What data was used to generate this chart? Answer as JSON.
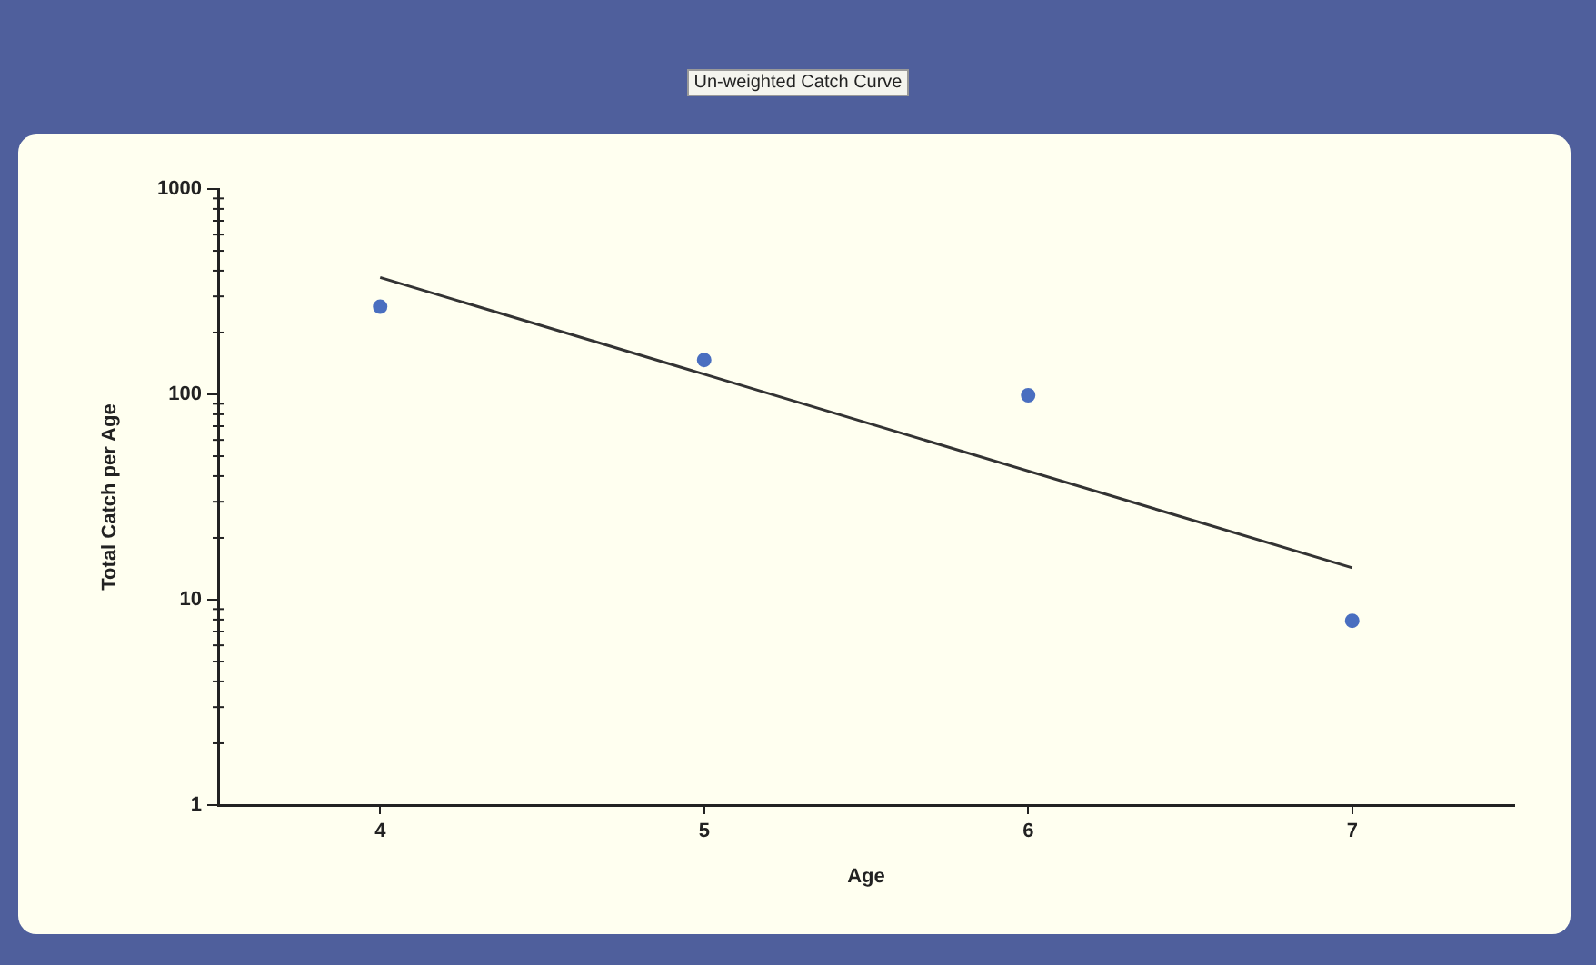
{
  "chart_data": {
    "type": "scatter",
    "title": "Un-weighted Catch Curve",
    "xlabel": "Age",
    "ylabel": "Total Catch per Age",
    "x": [
      4,
      5,
      6,
      7
    ],
    "series": [
      {
        "type": "scatter",
        "color": "#4a6fc0",
        "values": [
          267,
          147,
          99,
          7.9
        ],
        "marker": "circle"
      },
      {
        "type": "line",
        "color": "#333333",
        "x": [
          4,
          7
        ],
        "values": [
          371,
          14.3
        ],
        "marker": "none",
        "line_style": "solid"
      }
    ],
    "xlim": [
      3.5,
      7.5
    ],
    "xticks": [
      4,
      5,
      6,
      7
    ],
    "ylim": [
      1,
      1000
    ],
    "yticks": [
      1,
      10,
      100,
      1000
    ],
    "log": "y",
    "grid": false,
    "legend": false
  }
}
